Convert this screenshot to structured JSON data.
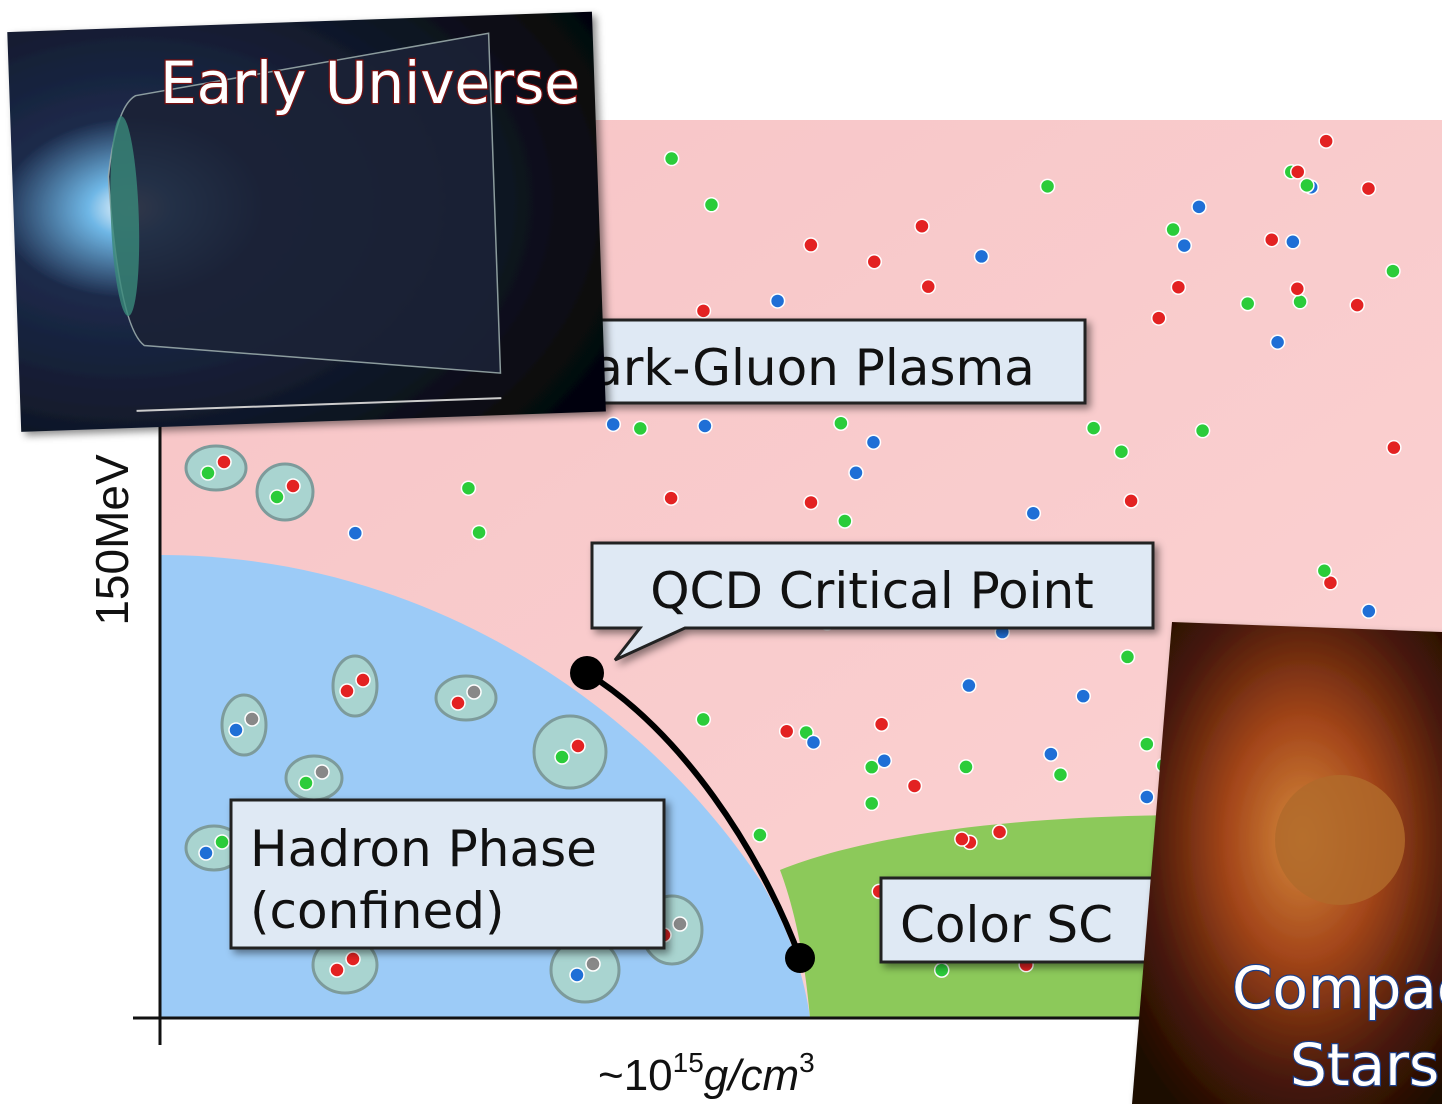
{
  "diagram": {
    "labels": {
      "early_universe": "Early Universe",
      "qgp": "Quark-Gluon Plasma",
      "critical_point": "QCD Critical Point",
      "hadron_phase": [
        "Hadron Phase",
        "(confined)"
      ],
      "color_sc": "Color SC",
      "compact_stars": [
        "Compact",
        "Stars"
      ]
    },
    "y_axis_label": "150MeV",
    "x_axis_label": {
      "prefix": "~10",
      "exponent": "15",
      "unit": "g/cm",
      "unit_exponent": "3"
    }
  }
}
